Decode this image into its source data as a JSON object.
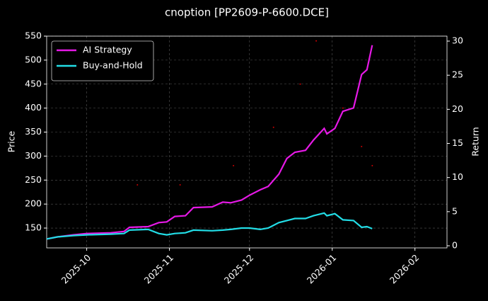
{
  "chart_data": {
    "type": "line",
    "title": "cnoption [PP2609-P-6600.DCE]",
    "y_label": "Price",
    "y2_label": "Return",
    "x": [
      "2025-09-16",
      "2025-09-20",
      "2025-09-26",
      "2025-10-01",
      "2025-10-10",
      "2025-10-15",
      "2025-10-17",
      "2025-10-24",
      "2025-10-28",
      "2025-10-31",
      "2025-11-03",
      "2025-11-07",
      "2025-11-10",
      "2025-11-17",
      "2025-11-21",
      "2025-11-24",
      "2025-11-28",
      "2025-12-01",
      "2025-12-05",
      "2025-12-08",
      "2025-12-12",
      "2025-12-15",
      "2025-12-18",
      "2025-12-22",
      "2025-12-25",
      "2025-12-29",
      "2025-12-30",
      "2026-01-02",
      "2026-01-05",
      "2026-01-09",
      "2026-01-12",
      "2026-01-14",
      "2026-01-16"
    ],
    "series": [
      {
        "name": "AI Strategy",
        "color": "#e619e6",
        "axis": "y2",
        "values": [
          1.0,
          1.3,
          1.6,
          1.8,
          1.9,
          2.1,
          2.7,
          2.8,
          3.4,
          3.5,
          4.3,
          4.4,
          5.6,
          5.7,
          6.4,
          6.3,
          6.7,
          7.4,
          8.2,
          8.7,
          10.5,
          12.8,
          13.7,
          14.0,
          15.5,
          17.2,
          16.4,
          17.2,
          19.7,
          20.2,
          25.1,
          25.8,
          29.4
        ]
      },
      {
        "name": "Buy-and-Hold",
        "color": "#22dde6",
        "axis": "y2",
        "values": [
          1.0,
          1.3,
          1.5,
          1.6,
          1.7,
          1.8,
          2.3,
          2.4,
          1.8,
          1.6,
          1.8,
          1.9,
          2.3,
          2.2,
          2.3,
          2.4,
          2.6,
          2.6,
          2.4,
          2.6,
          3.4,
          3.7,
          4.0,
          4.0,
          4.4,
          4.8,
          4.4,
          4.7,
          3.8,
          3.7,
          2.7,
          2.8,
          2.5
        ]
      },
      {
        "type": "scatter",
        "color": "#cc0000",
        "axis": "y",
        "x": [
          "2025-10-20",
          "2025-11-05",
          "2025-11-25",
          "2025-12-10",
          "2025-12-20",
          "2025-12-26",
          "2026-01-05",
          "2026-01-12",
          "2026-01-16"
        ],
        "values": [
          240,
          240,
          280,
          360,
          450,
          540,
          400,
          320,
          280
        ]
      }
    ],
    "xlim": [
      "2025-09-16",
      "2026-02-13"
    ],
    "xticks": [
      {
        "value": "2025-10-01",
        "label": "2025-10"
      },
      {
        "value": "2025-11-01",
        "label": "2025-11"
      },
      {
        "value": "2025-12-01",
        "label": "2025-12"
      },
      {
        "value": "2026-01-01",
        "label": "2026-01"
      },
      {
        "value": "2026-02-01",
        "label": "2026-02"
      }
    ],
    "ylim": [
      108.7,
      550
    ],
    "yticks": [
      150,
      200,
      250,
      300,
      350,
      400,
      450,
      500,
      550
    ],
    "y2lim": [
      -0.31,
      30.73
    ],
    "y2ticks": [
      0,
      5,
      10,
      15,
      20,
      25,
      30
    ],
    "grid": true,
    "legend": "upper-left"
  }
}
